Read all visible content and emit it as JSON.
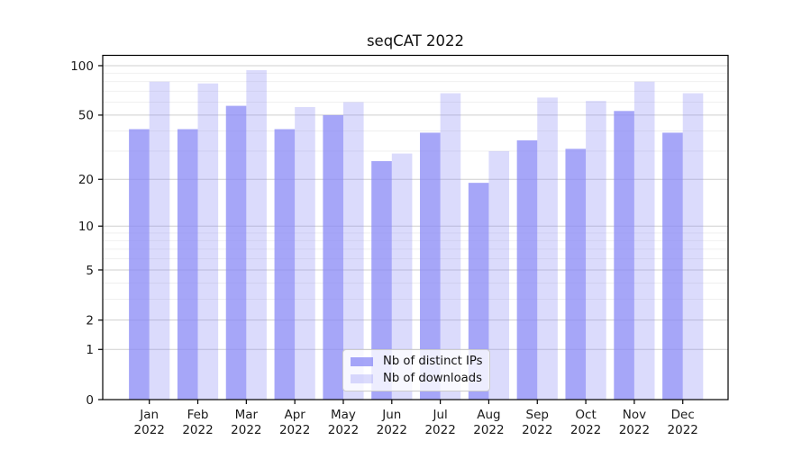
{
  "title": "seqCAT 2022",
  "chart_data": {
    "type": "bar",
    "title": "seqCAT 2022",
    "months": [
      "Jan",
      "Feb",
      "Mar",
      "Apr",
      "May",
      "Jun",
      "Jul",
      "Aug",
      "Sep",
      "Oct",
      "Nov",
      "Dec"
    ],
    "year_label": "2022",
    "categories": [
      "Jan 2022",
      "Feb 2022",
      "Mar 2022",
      "Apr 2022",
      "May 2022",
      "Jun 2022",
      "Jul 2022",
      "Aug 2022",
      "Sep 2022",
      "Oct 2022",
      "Nov 2022",
      "Dec 2022"
    ],
    "series": [
      {
        "name": "Nb of distinct IPs",
        "color": "rgba(136,136,245,0.75)",
        "values": [
          41,
          41,
          57,
          41,
          50,
          26,
          39,
          19,
          35,
          31,
          53,
          39
        ]
      },
      {
        "name": "Nb of downloads",
        "color": "rgba(136,136,245,0.30)",
        "values": [
          80,
          78,
          94,
          56,
          60,
          29,
          68,
          30,
          64,
          61,
          80,
          68
        ]
      }
    ],
    "yscale": "log1p",
    "ylim": [
      0,
      115
    ],
    "yticks": [
      0,
      1,
      2,
      5,
      10,
      20,
      50,
      100
    ],
    "minor_yticks": [
      3,
      4,
      6,
      7,
      8,
      9,
      30,
      40,
      60,
      70,
      80,
      90
    ],
    "grid": true,
    "legend_position": "lower center",
    "colors": {
      "axis": "#000000",
      "text": "#1a1a1a",
      "major_grid": "#cfcfcf",
      "minor_grid": "#ededed",
      "background": "#ffffff"
    }
  }
}
